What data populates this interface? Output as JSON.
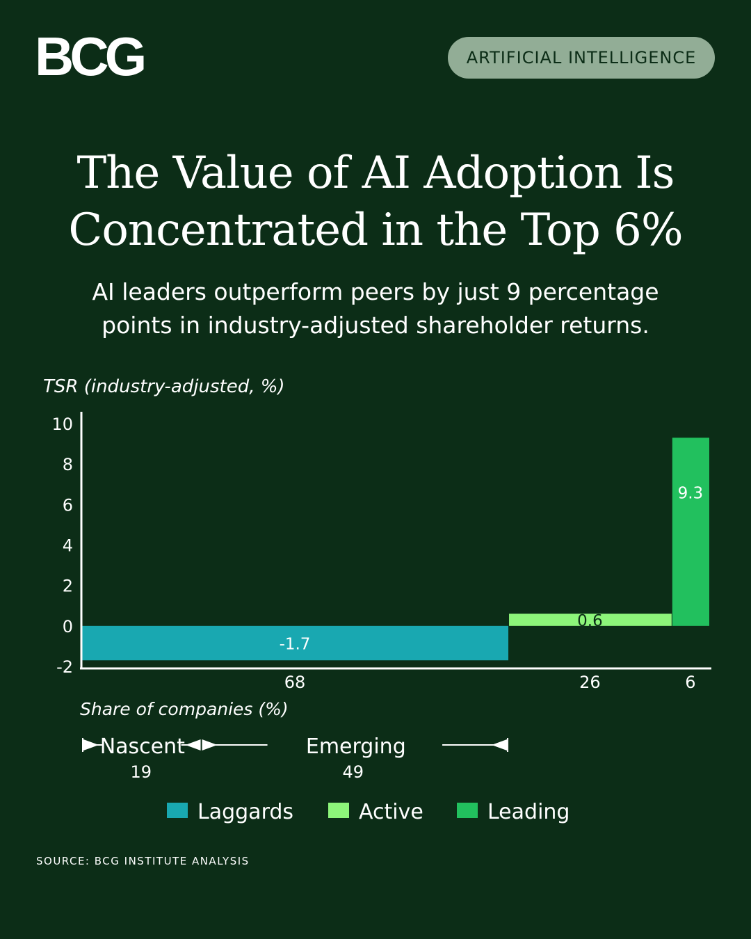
{
  "header": {
    "logo_text": "BCG",
    "category_label": "ARTIFICIAL INTELLIGENCE"
  },
  "title_lines": [
    "The Value of AI Adoption Is",
    "Concentrated in the Top 6%"
  ],
  "subtitle_lines": [
    "AI leaders outperform peers by just 9 percentage",
    "points in industry-adjusted shareholder returns."
  ],
  "chart_data": {
    "type": "bar",
    "subtype": "variable-width",
    "ylabel": "TSR (industry-adjusted, %)",
    "xlabel": "Share of companies (%)",
    "ylim": [
      -2,
      10
    ],
    "yticks": [
      -2,
      0,
      2,
      4,
      6,
      8,
      10
    ],
    "xlim": [
      0,
      100
    ],
    "series": [
      {
        "name": "Laggards",
        "share": 68,
        "value": -1.7,
        "label": "-1.7",
        "color": "#19a8b1"
      },
      {
        "name": "Active",
        "share": 26,
        "value": 0.6,
        "label": "0.6",
        "color": "#8df57a"
      },
      {
        "name": "Leading",
        "share": 6,
        "value": 9.3,
        "label": "9.3",
        "color": "#22c05e"
      }
    ],
    "sub_segments": [
      {
        "name": "Nascent",
        "share": 19
      },
      {
        "name": "Emerging",
        "share": 49
      }
    ],
    "legend_position": "bottom"
  },
  "source": "SOURCE: BCG INSTITUTE ANALYSIS"
}
